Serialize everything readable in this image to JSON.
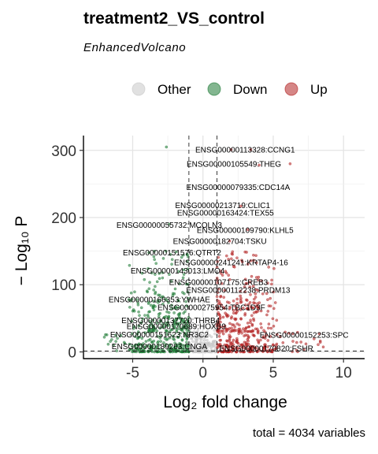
{
  "chart_data": {
    "type": "scatter",
    "title": "treatment2_VS_control",
    "subtitle": "EnhancedVolcano",
    "caption": "total = 4034 variables",
    "xlabel": "Log₂ fold change",
    "ylabel": "− Log₁₀ P",
    "xlim": [
      -8.5,
      11.5
    ],
    "ylim": [
      -10,
      322
    ],
    "xticks": [
      -5,
      0,
      5,
      10
    ],
    "yticks": [
      0,
      100,
      200,
      300
    ],
    "fc_cutoff": 1,
    "p_cutoff_neglog10": 1.3,
    "grid": true,
    "legend_position": "top",
    "legend": [
      {
        "name": "Other",
        "color": "#c8c8c8"
      },
      {
        "name": "Down",
        "color": "#1e7a35"
      },
      {
        "name": "Up",
        "color": "#b22222"
      }
    ],
    "labeled_genes": [
      {
        "label": "ENSG00000113328:CCNG1",
        "x": 3.0,
        "y": 301
      },
      {
        "label": "ENSG00000105549:THEG",
        "x": 2.2,
        "y": 280
      },
      {
        "label": "ENSG00000079335:CDC14A",
        "x": 2.5,
        "y": 245
      },
      {
        "label": "ENSG00000213719:CLIC1",
        "x": 1.4,
        "y": 218
      },
      {
        "label": "ENSG00000163424:TEX55",
        "x": 1.6,
        "y": 207
      },
      {
        "label": "ENSG00000055732:MCOLN3",
        "x": -2.4,
        "y": 189
      },
      {
        "label": "ENSG00000109790:KLHL5",
        "x": 3.0,
        "y": 181
      },
      {
        "label": "ENSG00000182704:TSKU",
        "x": 1.2,
        "y": 165
      },
      {
        "label": "ENSG00000151576:QTRT2",
        "x": -2.2,
        "y": 148
      },
      {
        "label": "ENSG00000241241:KRTAP4-16",
        "x": 2.0,
        "y": 133
      },
      {
        "label": "ENSG00000143013:LMO4",
        "x": -1.8,
        "y": 121
      },
      {
        "label": "ENSG00000107175:CREB3",
        "x": 1.1,
        "y": 104
      },
      {
        "label": "ENSG00000112238:PRDM13",
        "x": 2.5,
        "y": 92
      },
      {
        "label": "ENSG00000166353:YWHAE",
        "x": -3.1,
        "y": 78
      },
      {
        "label": "ENSG00000275954:TBC1D3F",
        "x": 0.6,
        "y": 66
      },
      {
        "label": "ENSG00000137720:THRB4",
        "x": -2.3,
        "y": 47
      },
      {
        "label": "ENSG00000170689:HOXB9",
        "x": -1.9,
        "y": 38
      },
      {
        "label": "ENSG00000151623:NR3C2",
        "x": -3.1,
        "y": 26
      },
      {
        "label": "ENSG00000152253:SPC",
        "x": 7.2,
        "y": 25
      },
      {
        "label": "ENSG00000189263:CNGA",
        "x": -3.1,
        "y": 8
      },
      {
        "label": "ENSG00000170820:FSHR",
        "x": 4.5,
        "y": 5
      }
    ]
  }
}
